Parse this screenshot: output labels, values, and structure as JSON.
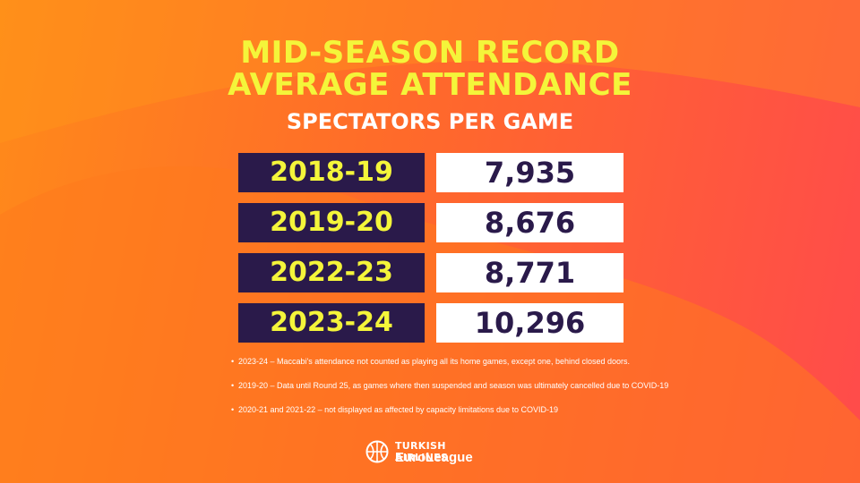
{
  "title": {
    "line1": "MID-SEASON RECORD",
    "line2": "AVERAGE ATTENDANCE"
  },
  "subtitle": "SPECTATORS PER GAME",
  "rows": [
    {
      "season": "2018-19",
      "value": "7,935"
    },
    {
      "season": "2019-20",
      "value": "8,676"
    },
    {
      "season": "2022-23",
      "value": "8,771"
    },
    {
      "season": "2023-24",
      "value": "10,296"
    }
  ],
  "notes": [
    "2023-24 – Maccabi's attendance not counted as playing all its home games, except one, behind closed doors.",
    "2019-20 – Data until Round 25, as games where then suspended and season was ultimately cancelled due to COVID-19",
    "2020-21 and 2021-22 – not displayed as affected by capacity limitations due to COVID-19"
  ],
  "bullet": "•",
  "logo": {
    "top_text": "TURKISH AIRLINES",
    "bottom_text": "EuroLeague"
  },
  "colors": {
    "title": "#f4f53a",
    "season_bg": "#2a1a4a",
    "value_bg": "#ffffff",
    "value_text": "#2a1a4a"
  }
}
